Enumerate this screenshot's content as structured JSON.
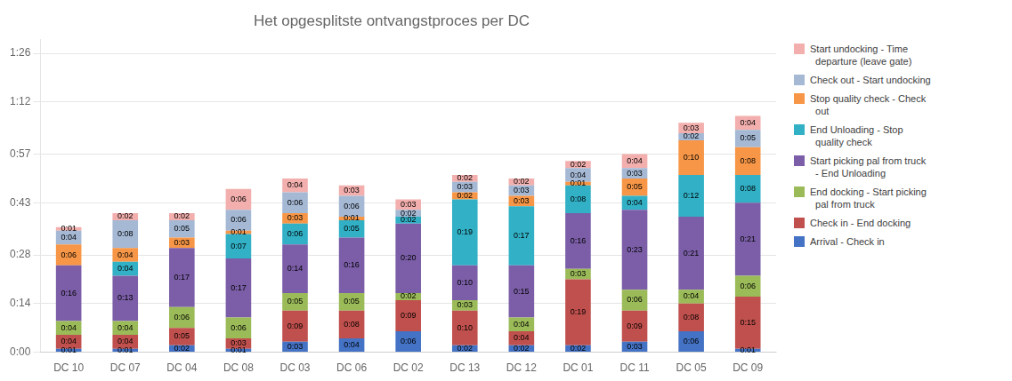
{
  "chart_data": {
    "type": "bar",
    "title": "Het opgesplitste ontvangstproces per DC",
    "categories": [
      "DC 10",
      "DC 07",
      "DC 04",
      "DC 08",
      "DC 03",
      "DC 06",
      "DC 02",
      "DC 13",
      "DC 12",
      "DC 01",
      "DC 11",
      "DC 05",
      "DC 09"
    ],
    "series": [
      {
        "name": "Arrival - Check in",
        "color": "#4472C4",
        "values": [
          1,
          1,
          2,
          1,
          3,
          4,
          6,
          2,
          2,
          2,
          3,
          6,
          1
        ],
        "value_labels": [
          "0:01",
          "0:01",
          "0:02",
          "0:01",
          "0:03",
          "0:04",
          "0:06",
          "0:02",
          "0:02",
          "0:02",
          "0:03",
          "0:06",
          "0:01"
        ]
      },
      {
        "name": "Check in - End docking",
        "color": "#C0504D",
        "values": [
          4,
          4,
          5,
          3,
          9,
          8,
          9,
          10,
          4,
          19,
          9,
          8,
          15
        ],
        "value_labels": [
          "0:04",
          "0:04",
          "0:05",
          "0:03",
          "0:09",
          "0:08",
          "0:09",
          "0:10",
          "0:04",
          "0:19",
          "0:09",
          "0:08",
          "0:15"
        ]
      },
      {
        "name": "End docking - Start picking\n  pal from truck",
        "color": "#9BBB59",
        "values": [
          4,
          4,
          6,
          6,
          5,
          5,
          2,
          3,
          4,
          3,
          6,
          4,
          6
        ],
        "value_labels": [
          "0:04",
          "0:04",
          "0:06",
          "0:06",
          "0:05",
          "0:05",
          "0:02",
          "0:03",
          "0:04",
          "0:03",
          "0:06",
          "0:04",
          "0:06"
        ]
      },
      {
        "name": "Start picking pal from truck\n  - End Unloading",
        "color": "#7B5EA7",
        "values": [
          16,
          13,
          17,
          17,
          14,
          16,
          20,
          10,
          15,
          16,
          23,
          21,
          21
        ],
        "value_labels": [
          "0:16",
          "0:13",
          "0:17",
          "0:17",
          "0:14",
          "0:16",
          "0:20",
          "0:10",
          "0:15",
          "0:16",
          "0:23",
          "0:21",
          "0:21"
        ]
      },
      {
        "name": "End Unloading - Stop\n  quality check",
        "color": "#31B0C6",
        "values": [
          0,
          4,
          0,
          7,
          6,
          5,
          2,
          19,
          17,
          8,
          4,
          12,
          8
        ],
        "value_labels": [
          null,
          "0:04",
          null,
          "0:07",
          "0:06",
          "0:05",
          "0:02",
          "0:19",
          "0:17",
          "0:08",
          "0:04",
          "0:12",
          "0:08"
        ]
      },
      {
        "name": "Stop quality check - Check\n  out",
        "color": "#F79646",
        "values": [
          6,
          4,
          3,
          1,
          3,
          1,
          0,
          2,
          3,
          1,
          5,
          10,
          8
        ],
        "value_labels": [
          "0:06",
          "0:04",
          "0:03",
          "0:01",
          "0:03",
          "0:01",
          null,
          "0:02",
          "0:03",
          "0:01",
          "0:05",
          "0:10",
          "0:08"
        ]
      },
      {
        "name": "Check out - Start undocking",
        "color": "#A5B9D5",
        "values": [
          4,
          8,
          5,
          6,
          6,
          6,
          2,
          3,
          3,
          4,
          3,
          2,
          5
        ],
        "value_labels": [
          "0:04",
          "0:08",
          "0:05",
          "0:06",
          "0:06",
          "0:06",
          "0:02",
          "0:03",
          "0:03",
          "0:04",
          "0:03",
          "0:02",
          "0:05"
        ]
      },
      {
        "name": "Start undocking - Time\n  departure (leave gate)",
        "color": "#F2AFAD",
        "values": [
          1,
          2,
          2,
          6,
          4,
          3,
          3,
          2,
          2,
          2,
          4,
          3,
          4
        ],
        "value_labels": [
          "0:01",
          "0:02",
          "0:02",
          "0:06",
          "0:04",
          "0:03",
          "0:03",
          "0:02",
          "0:02",
          "0:02",
          "0:04",
          "0:03",
          "0:04"
        ]
      }
    ],
    "stacked": true,
    "data_labels": true,
    "ylim": [
      0,
      90
    ],
    "yticks": [
      {
        "value": 0,
        "label": "0:00"
      },
      {
        "value": 14,
        "label": "0:14"
      },
      {
        "value": 28,
        "label": "0:28"
      },
      {
        "value": 43,
        "label": "0:43"
      },
      {
        "value": 57,
        "label": "0:57"
      },
      {
        "value": 72,
        "label": "1:12"
      },
      {
        "value": 86,
        "label": "1:26"
      }
    ],
    "grid": "y",
    "legend": "right"
  }
}
